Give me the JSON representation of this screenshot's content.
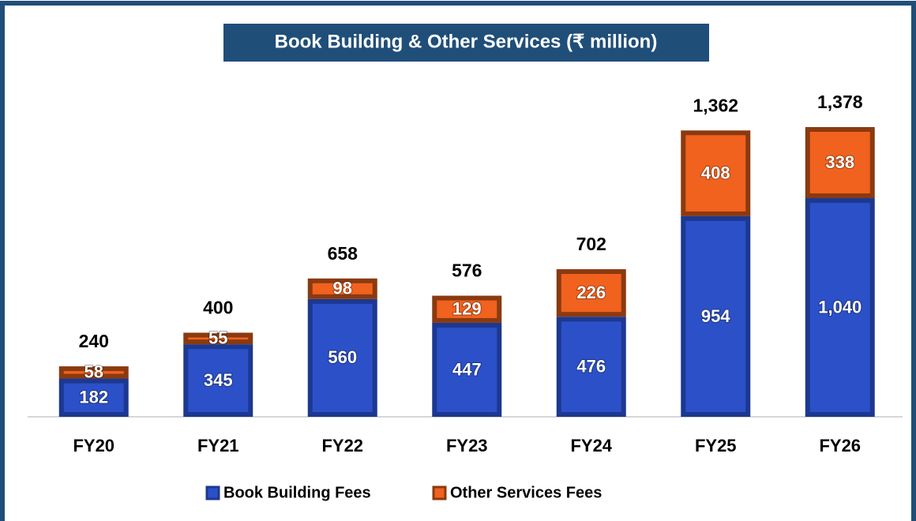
{
  "chart_data": {
    "type": "stacked_bar",
    "title": "Book Building & Other Services (₹ million)",
    "categories": [
      "FY20",
      "FY21",
      "FY22",
      "FY23",
      "FY24",
      "FY25",
      "FY26"
    ],
    "series": [
      {
        "name": "Book Building Fees",
        "color": "#2b50c8",
        "edge": "#1c3890",
        "values": [
          182,
          345,
          560,
          447,
          476,
          954,
          1040
        ],
        "value_labels": [
          "182",
          "345",
          "560",
          "447",
          "476",
          "954",
          "1,040"
        ]
      },
      {
        "name": "Other Services Fees",
        "color": "#f0621e",
        "edge": "#8a3a10",
        "values": [
          58,
          55,
          98,
          129,
          226,
          408,
          338
        ],
        "value_labels": [
          "58",
          "55",
          "98",
          "129",
          "226",
          "408",
          "338"
        ]
      }
    ],
    "totals": [
      240,
      400,
      658,
      576,
      702,
      1362,
      1378
    ],
    "total_labels": [
      "240",
      "400",
      "658",
      "576",
      "702",
      "1,362",
      "1,378"
    ],
    "legend": "bottom"
  }
}
